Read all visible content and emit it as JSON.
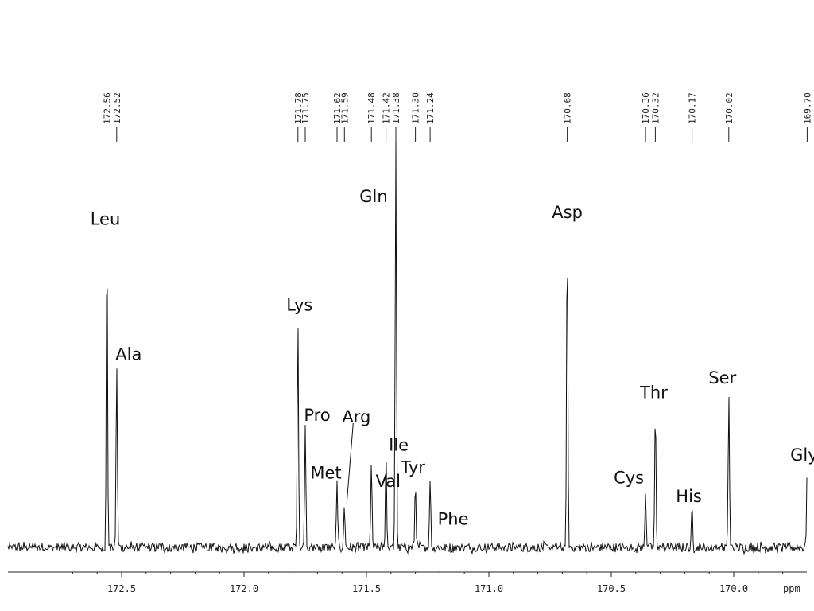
{
  "chart_data": {
    "type": "line",
    "title": "",
    "xlabel": "ppm",
    "ylabel": "",
    "xlim": [
      172.75,
      169.5
    ],
    "x_reversed": true,
    "grid": false,
    "legend": "none",
    "x_ticks": [
      172.5,
      172.0,
      171.5,
      171.0,
      170.5,
      170.0
    ],
    "x_tick_labels": [
      "172.5",
      "172.0",
      "171.5",
      "171.0",
      "170.5",
      "170.0"
    ],
    "unit_label": "ppm",
    "peak_shift_labels": [
      "172.56",
      "172.52",
      "171.78",
      "171.75",
      "171.62",
      "171.59",
      "171.48",
      "171.42",
      "171.38",
      "171.30",
      "171.24",
      "170.68",
      "170.36",
      "170.32",
      "170.17",
      "170.02",
      "169.70"
    ],
    "peaks": [
      {
        "name": "Leu",
        "ppm": 172.56,
        "intensity": 0.76
      },
      {
        "name": "Ala",
        "ppm": 172.52,
        "intensity": 0.45
      },
      {
        "name": "Lys",
        "ppm": 171.78,
        "intensity": 0.56
      },
      {
        "name": "Pro",
        "ppm": 171.75,
        "intensity": 0.3
      },
      {
        "name": "Met",
        "ppm": 171.62,
        "intensity": 0.16
      },
      {
        "name": "Arg",
        "ppm": 171.59,
        "intensity": 0.1
      },
      {
        "name": "Val",
        "ppm": 171.48,
        "intensity": 0.21
      },
      {
        "name": "Ile",
        "ppm": 171.42,
        "intensity": 0.23
      },
      {
        "name": "Gln",
        "ppm": 171.38,
        "intensity": 1.0
      },
      {
        "name": "Tyr",
        "ppm": 171.3,
        "intensity": 0.16
      },
      {
        "name": "Phe",
        "ppm": 171.24,
        "intensity": 0.17
      },
      {
        "name": "Asp",
        "ppm": 170.68,
        "intensity": 0.78
      },
      {
        "name": "Cys",
        "ppm": 170.36,
        "intensity": 0.14
      },
      {
        "name": "Thr",
        "ppm": 170.32,
        "intensity": 0.34
      },
      {
        "name": "His",
        "ppm": 170.17,
        "intensity": 0.1
      },
      {
        "name": "Ser",
        "ppm": 170.02,
        "intensity": 0.38
      },
      {
        "name": "Gly",
        "ppm": 169.7,
        "intensity": 0.19
      }
    ]
  }
}
